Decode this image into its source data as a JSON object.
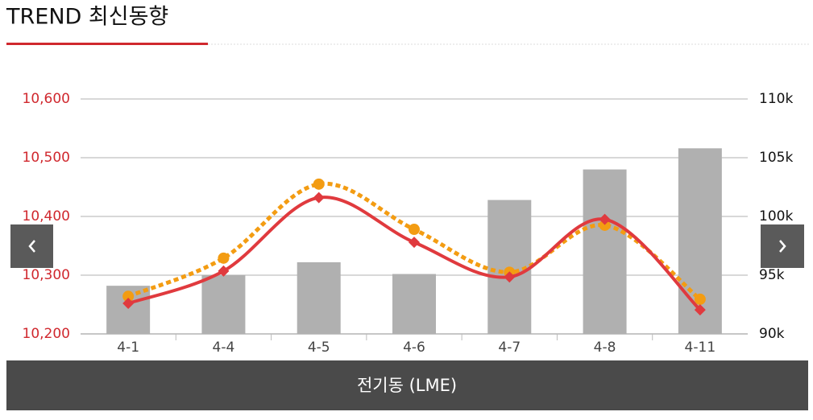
{
  "header": {
    "title": "TREND 최신동향"
  },
  "chart_data": {
    "type": "bar-line",
    "caption": "전기동 (LME)",
    "categories": [
      "4-1",
      "4-4",
      "4-5",
      "4-6",
      "4-7",
      "4-8",
      "4-11"
    ],
    "series": [
      {
        "type": "bar",
        "axis": "y2",
        "color": "#b0b0b0",
        "values": [
          94100,
          95000,
          96100,
          95100,
          101400,
          104000,
          105800
        ]
      },
      {
        "type": "line",
        "color": "#e03a3e",
        "marker": "diamond",
        "dashed": false,
        "values": [
          10252,
          10307,
          10432,
          10356,
          10297,
          10395,
          10241
        ]
      },
      {
        "type": "line",
        "color": "#f39c12",
        "marker": "circle",
        "dashed": true,
        "values": [
          10264,
          10329,
          10455,
          10378,
          10305,
          10385,
          10259
        ]
      }
    ],
    "ylim": [
      10200,
      10600
    ],
    "yticks": [
      {
        "value": 10200,
        "label": "10,200"
      },
      {
        "value": 10300,
        "label": "10,300"
      },
      {
        "value": 10400,
        "label": "10,400"
      },
      {
        "value": 10500,
        "label": "10,500"
      },
      {
        "value": 10600,
        "label": "10,600"
      }
    ],
    "y2lim": [
      90000,
      110000
    ],
    "y2ticks": [
      {
        "value": 90000,
        "label": "90k"
      },
      {
        "value": 95000,
        "label": "95k"
      },
      {
        "value": 100000,
        "label": "100k"
      },
      {
        "value": 105000,
        "label": "105k"
      },
      {
        "value": 110000,
        "label": "110k"
      }
    ],
    "grid": true
  }
}
